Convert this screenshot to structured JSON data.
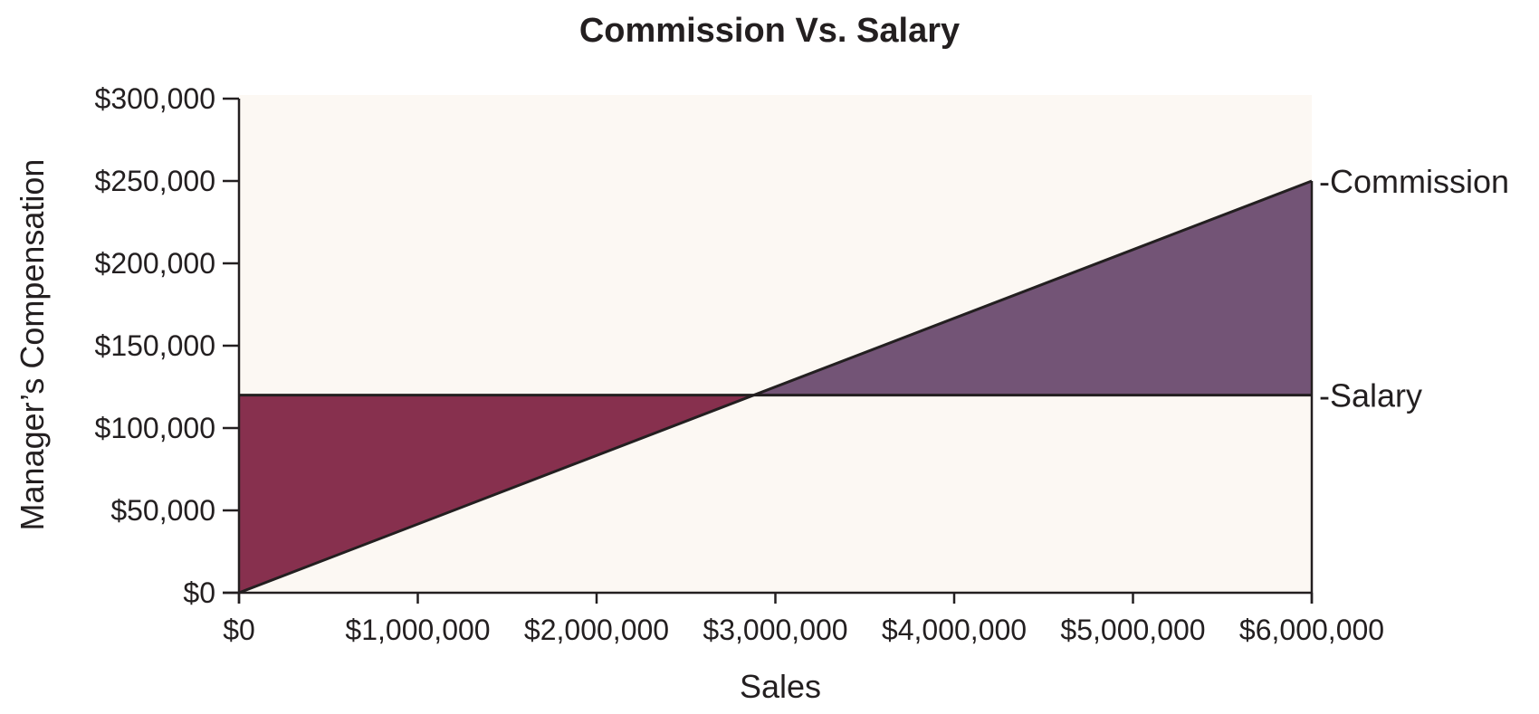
{
  "chart_data": {
    "type": "line",
    "title": "Commission Vs. Salary",
    "xlabel": "Sales",
    "ylabel": "Manager’s Compensation",
    "xlim": [
      0,
      6000000
    ],
    "ylim": [
      0,
      300000
    ],
    "x_ticks": [
      0,
      1000000,
      2000000,
      3000000,
      4000000,
      5000000,
      6000000
    ],
    "x_tick_labels": [
      "$0",
      "$1,000,000",
      "$2,000,000",
      "$3,000,000",
      "$4,000,000",
      "$5,000,000",
      "$6,000,000"
    ],
    "y_ticks": [
      0,
      50000,
      100000,
      150000,
      200000,
      250000,
      300000
    ],
    "y_tick_labels": [
      "$0",
      "$50,000",
      "$100,000",
      "$150,000",
      "$200,000",
      "$250,000",
      "$300,000"
    ],
    "series": [
      {
        "name": "-Commission",
        "x": [
          0,
          6000000
        ],
        "y": [
          0,
          250000
        ]
      },
      {
        "name": "-Salary",
        "x": [
          0,
          6000000
        ],
        "y": [
          120000,
          120000
        ]
      }
    ],
    "crossover": {
      "x": 2880000,
      "y": 120000
    },
    "grid": false,
    "legend": "right-end labels"
  },
  "colors": {
    "plot_background": "#fcf8f3",
    "salary_region": "#87304e",
    "commission_region": "#735476",
    "line": "#231f20"
  }
}
